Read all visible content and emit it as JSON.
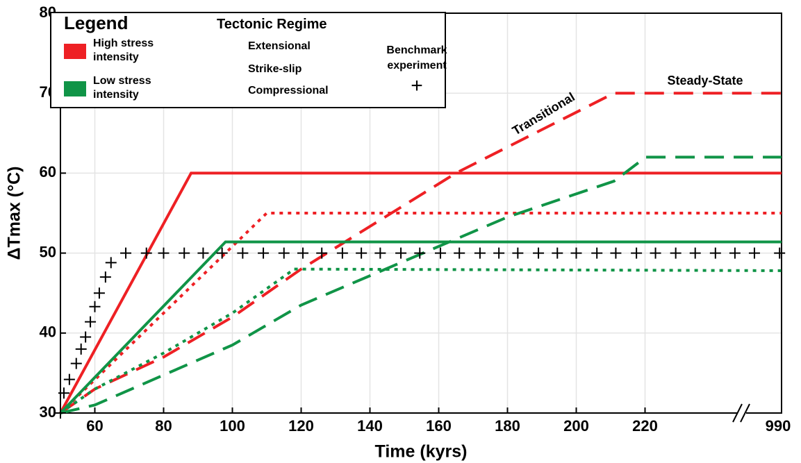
{
  "chart_data": {
    "type": "line",
    "xlabel": "Time (kyrs)",
    "ylabel": "ΔTmax (°C)",
    "xlim": [
      50,
      990
    ],
    "ylim": [
      30,
      80
    ],
    "xticks": [
      60,
      80,
      100,
      120,
      140,
      160,
      180,
      200,
      220,
      990
    ],
    "yticks": [
      30,
      40,
      50,
      60,
      70,
      80
    ],
    "grid": true,
    "series": [
      {
        "color": "#ee2024",
        "style": "solid",
        "x": [
          50,
          88,
          990
        ],
        "values": [
          30,
          60,
          60
        ]
      },
      {
        "color": "#ee2024",
        "style": "dotted",
        "x": [
          50,
          110,
          990
        ],
        "values": [
          30,
          55,
          55
        ]
      },
      {
        "color": "#ee2024",
        "style": "dashed",
        "x": [
          50,
          60,
          80,
          100,
          120,
          165,
          211,
          990
        ],
        "values": [
          30,
          33,
          37,
          42,
          48,
          60,
          70,
          70
        ]
      },
      {
        "color": "#109447",
        "style": "solid",
        "x": [
          50,
          98,
          990
        ],
        "values": [
          30,
          51.4,
          51.4
        ]
      },
      {
        "color": "#109447",
        "style": "dotted",
        "x": [
          50,
          60,
          80,
          100,
          118,
          990
        ],
        "values": [
          30,
          33,
          37.5,
          42.5,
          48,
          47.8
        ]
      },
      {
        "color": "#109447",
        "style": "dashed",
        "x": [
          50,
          60,
          100,
          120,
          150,
          180,
          211,
          224,
          990
        ],
        "values": [
          30,
          31,
          38.5,
          43.5,
          49,
          54.5,
          59,
          62,
          62
        ]
      },
      {
        "color": "#000000",
        "style": "plus",
        "x": [
          50,
          51,
          52.6,
          54.6,
          56,
          57.3,
          58.7,
          60,
          61.3,
          63.1,
          64.7,
          69,
          75,
          80,
          86,
          91.5,
          97,
          103,
          109,
          115,
          120.5,
          126,
          132,
          137.5,
          143,
          149,
          154.5,
          160.5,
          166,
          172,
          177.5,
          183,
          189,
          194.5,
          200,
          206,
          211.5,
          217.5,
          279,
          393,
          503,
          617,
          727,
          837,
          979
        ],
        "values": [
          30,
          32.5,
          34.2,
          36.2,
          38,
          39.5,
          41.4,
          43.3,
          45,
          47,
          48.8,
          50,
          50,
          50,
          50,
          50,
          50,
          50,
          50,
          50,
          50,
          50,
          50,
          50,
          50,
          50,
          50,
          50,
          50,
          50,
          50,
          50,
          50,
          50,
          50,
          50,
          50,
          50,
          50,
          50,
          50,
          50,
          50,
          50,
          50
        ]
      }
    ],
    "annotations": [
      "Transitional",
      "Steady-State"
    ],
    "legend": {
      "title": "Legend",
      "colors": [
        {
          "label": "High stress intensity",
          "color": "#ee2024"
        },
        {
          "label": "Low stress intensity",
          "color": "#109447"
        }
      ],
      "regime_title": "Tectonic Regime",
      "styles": [
        {
          "label": "Extensional",
          "style": "dotted"
        },
        {
          "label": "Strike-slip",
          "style": "dashed"
        },
        {
          "label": "Compressional",
          "style": "solid"
        }
      ],
      "benchmark": "Benchmark experiment",
      "benchmark_marker": "+"
    }
  }
}
